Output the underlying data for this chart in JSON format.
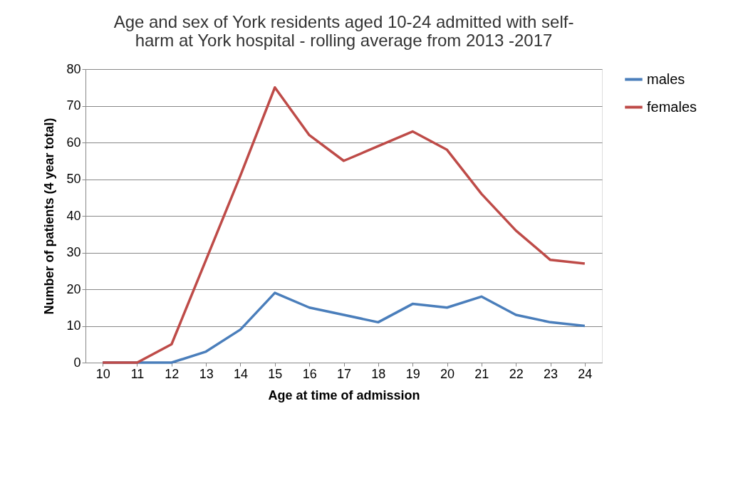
{
  "chart_data": {
    "type": "line",
    "title": "Age  and sex of York residents aged 10-24 admitted with self-\nharm at York hospital - rolling average  from 2013 -2017",
    "xlabel": "Age at time of admission",
    "ylabel": "Number of patients (4 year total)",
    "categories": [
      "10",
      "11",
      "12",
      "13",
      "14",
      "15",
      "16",
      "17",
      "18",
      "19",
      "20",
      "21",
      "22",
      "23",
      "24"
    ],
    "series": [
      {
        "name": "males",
        "color": "#4a7ebb",
        "values": [
          0,
          0,
          0,
          3,
          9,
          19,
          15,
          13,
          11,
          16,
          15,
          18,
          13,
          11,
          10
        ]
      },
      {
        "name": "females",
        "color": "#be4b48",
        "values": [
          0,
          0,
          5,
          28,
          51,
          75,
          62,
          55,
          59,
          63,
          58,
          46,
          36,
          28,
          27
        ]
      }
    ],
    "ylim": [
      0,
      80
    ],
    "yticks": [
      0,
      10,
      20,
      30,
      40,
      50,
      60,
      70,
      80
    ],
    "grid": "y",
    "legend": "right",
    "marker": "none",
    "line_style": "solid"
  }
}
